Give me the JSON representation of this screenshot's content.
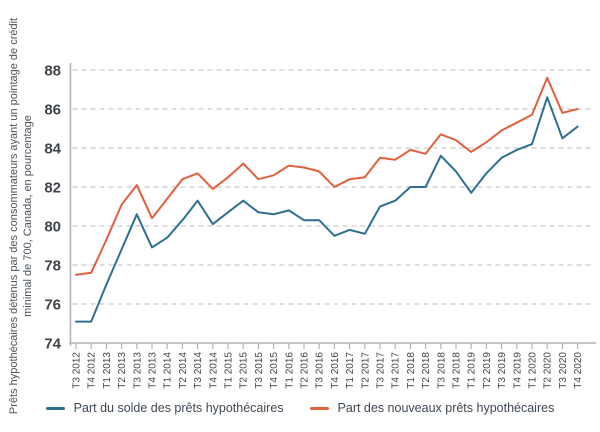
{
  "chart_data": {
    "type": "line",
    "title": "",
    "ylabel_lines": [
      "Prêts hypothécaires détenus par des consommateurs ayant un pointage de crédit",
      "minimal de 700, Canada, en pourcentage"
    ],
    "categories": [
      "T3 2012",
      "T4 2012",
      "T1 2013",
      "T2 2013",
      "T3 2013",
      "T4 2013",
      "T1 2014",
      "T2 2014",
      "T3 2014",
      "T4 2014",
      "T1 2015",
      "T2 2015",
      "T3 2015",
      "T4 2015",
      "T1 2016",
      "T2 2016",
      "T3 2016",
      "T4 2016",
      "T1 2017",
      "T2 2017",
      "T3 2017",
      "T4 2017",
      "T1 2018",
      "T2 2018",
      "T3 2018",
      "T4 2018",
      "T1 2019",
      "T2 2019",
      "T3 2019",
      "T4 2019",
      "T1 2020",
      "T2 2020",
      "T3 2020",
      "T4 2020"
    ],
    "series": [
      {
        "name": "Part du solde des prêts hypothécaires",
        "color": "#2f6f8f",
        "values": [
          75.1,
          75.1,
          77.0,
          78.8,
          80.6,
          78.9,
          79.4,
          80.3,
          81.3,
          80.1,
          80.7,
          81.3,
          80.7,
          80.6,
          80.8,
          80.3,
          80.3,
          79.5,
          79.8,
          79.6,
          81.0,
          81.3,
          82.0,
          82.0,
          83.6,
          82.8,
          81.7,
          82.7,
          83.5,
          83.9,
          84.2,
          86.6,
          84.5,
          85.1
        ]
      },
      {
        "name": "Part des nouveaux prêts hypothécaires",
        "color": "#e0613f",
        "values": [
          77.5,
          77.6,
          79.3,
          81.1,
          82.1,
          80.4,
          81.4,
          82.4,
          82.7,
          81.9,
          82.5,
          83.2,
          82.4,
          82.6,
          83.1,
          83.0,
          82.8,
          82.0,
          82.4,
          82.5,
          83.5,
          83.4,
          83.9,
          83.7,
          84.7,
          84.4,
          83.8,
          84.3,
          84.9,
          85.3,
          85.7,
          87.6,
          85.8,
          86.0
        ]
      }
    ],
    "xlabel": "",
    "ylim": [
      74,
      88
    ],
    "ytick_step": 2,
    "grid": "horizontal dashed",
    "legend_position": "bottom",
    "axis_color": "#b4b4b4",
    "grid_color": "#cbcbcb",
    "tick_label_color": "#3f444a"
  }
}
